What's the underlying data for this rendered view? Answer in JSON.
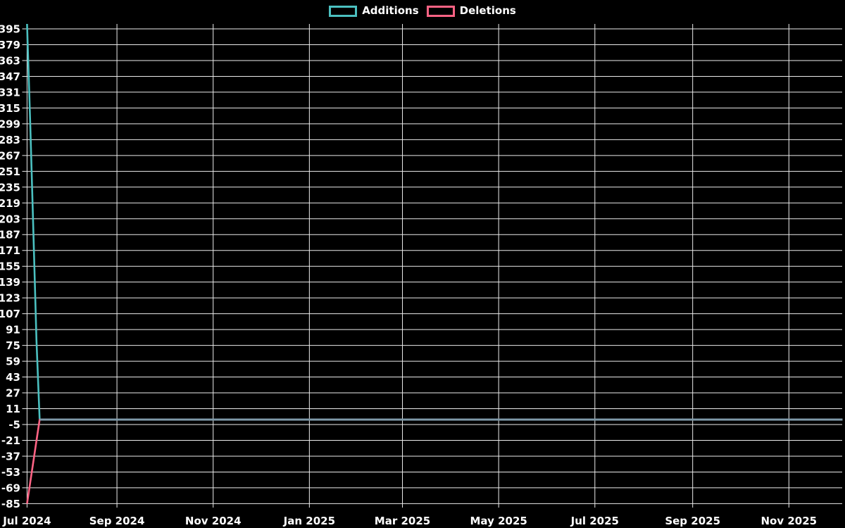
{
  "legend": {
    "items": [
      {
        "label": "Additions",
        "color": "#4bc0c0"
      },
      {
        "label": "Deletions",
        "color": "#ff6384"
      }
    ]
  },
  "chart_data": {
    "type": "line",
    "title": "",
    "xlabel": "",
    "ylabel": "",
    "background_color": "#000000",
    "grid_color": "#ebebeb",
    "text_color": "#ffffff",
    "grid": true,
    "legend_position": "top",
    "x_axis": {
      "type": "time",
      "min_date": "2024-07-06",
      "max_date": "2025-12-05",
      "ticks": [
        {
          "label": "Jul 2024",
          "date": "2024-07-06"
        },
        {
          "label": "Sep 2024",
          "date": "2024-09-01"
        },
        {
          "label": "Nov 2024",
          "date": "2024-11-01"
        },
        {
          "label": "Jan 2025",
          "date": "2025-01-01"
        },
        {
          "label": "Mar 2025",
          "date": "2025-03-01"
        },
        {
          "label": "May 2025",
          "date": "2025-05-01"
        },
        {
          "label": "Jul 2025",
          "date": "2025-07-01"
        },
        {
          "label": "Sep 2025",
          "date": "2025-09-01"
        },
        {
          "label": "Nov 2025",
          "date": "2025-11-01"
        }
      ]
    },
    "y_axis": {
      "min": -85,
      "max": 395,
      "tick_step": 16,
      "ticks": [
        395,
        379,
        363,
        347,
        331,
        315,
        299,
        283,
        267,
        251,
        235,
        219,
        203,
        187,
        171,
        155,
        139,
        123,
        107,
        91,
        75,
        59,
        43,
        27,
        11,
        -5,
        -21,
        -37,
        -53,
        -69,
        -85
      ]
    },
    "series": [
      {
        "name": "Additions",
        "color": "#4bc0c0",
        "points": [
          [
            "2024-07-06",
            400
          ],
          [
            "2024-07-08",
            300
          ],
          [
            "2024-07-10",
            190
          ],
          [
            "2024-07-12",
            80
          ],
          [
            "2024-07-14",
            0
          ],
          [
            "2025-12-05",
            0
          ]
        ]
      },
      {
        "name": "Deletions",
        "color": "#ff6384",
        "points": [
          [
            "2024-07-06",
            -85
          ],
          [
            "2024-07-14",
            0
          ],
          [
            "2025-12-05",
            0
          ]
        ]
      }
    ],
    "overlap_segment": {
      "note": "Both series flat at 0 overlap into one blended line",
      "from": "2024-07-14",
      "to": "2025-12-05",
      "value": 0,
      "color": "#7e99a8"
    }
  }
}
